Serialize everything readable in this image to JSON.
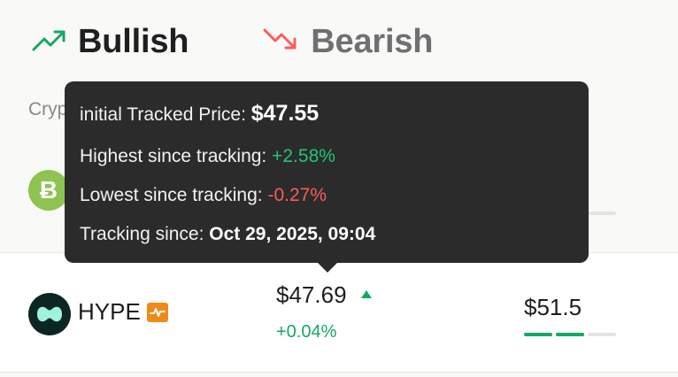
{
  "tabs": {
    "bullish_label": "Bullish",
    "bearish_label": "Bearish",
    "bullish_icon": "trending-up-icon",
    "bearish_icon": "trending-down-icon"
  },
  "subheading": "Cryp",
  "rows": [
    {
      "icon": "bitcoin-cash-icon",
      "icon_glyph": "Ƀ"
    },
    {
      "symbol": "HYPE",
      "icon": "hyperliquid-icon",
      "badge_icon": "activity-pulse-icon",
      "price": "$47.69",
      "change": "+0.04%",
      "target": "$51.5",
      "progress_segments_filled": 2,
      "progress_segments_total": 3
    }
  ],
  "tooltip": {
    "initial_label": "initial Tracked Price:",
    "initial_value": "$47.55",
    "highest_label": "Highest since tracking:",
    "highest_value": "+2.58%",
    "lowest_label": "Lowest since tracking:",
    "lowest_value": "-0.27%",
    "since_label": "Tracking since:",
    "since_value": "Oct 29, 2025, 09:04"
  },
  "colors": {
    "positive": "#16a765",
    "negative": "#ff5a5a",
    "tooltip_bg": "#2b2b2b",
    "badge": "#f08a16"
  }
}
